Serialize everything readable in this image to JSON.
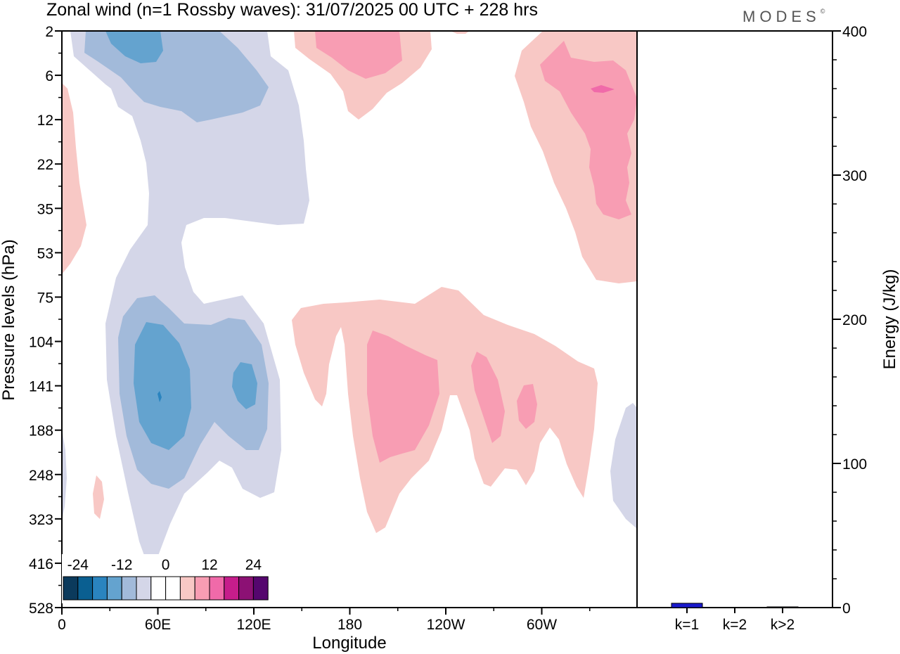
{
  "chart_data": {
    "type": "heatmap",
    "title": "Zonal wind (n=1 Rossby waves):  31/07/2025  00 UTC  + 228 hrs",
    "brand": "MODES",
    "brand_mark": "©",
    "xlabel": "Longitude",
    "ylabel": "Pressure levels (hPa)",
    "x_ticks": [
      "0",
      "60E",
      "120E",
      "180",
      "120W",
      "60W"
    ],
    "y_ticks": [
      "2",
      "6",
      "12",
      "22",
      "35",
      "53",
      "75",
      "104",
      "141",
      "188",
      "248",
      "323",
      "416",
      "528"
    ],
    "colorbar": {
      "tick_labels": [
        "-24",
        "-12",
        "0",
        "12",
        "24"
      ],
      "colors": [
        "#0b3a5c",
        "#0a5f91",
        "#2a84bf",
        "#64a3cf",
        "#a2bada",
        "#d4d6e8",
        "#ffffff",
        "#ffffff",
        "#f8c8c5",
        "#f89db3",
        "#f06aa9",
        "#c61d8b",
        "#8c1174",
        "#55066e"
      ]
    },
    "contour_colors": {
      "neg_weak": "#d4d6e8",
      "neg_mid": "#a2bada",
      "neg_strong": "#64a3cf",
      "neg_max": "#2a84bf",
      "pos_weak": "#f8c8c5",
      "pos_mid": "#f89db3",
      "pos_strong": "#f06aa9"
    },
    "energy_panel": {
      "ylabel": "Energy (J/kg)",
      "ylim": [
        0,
        400
      ],
      "y_ticks": [
        "0",
        "100",
        "200",
        "300",
        "400"
      ],
      "categories": [
        "k=1",
        "k=2",
        "k>2"
      ],
      "values": [
        3,
        0,
        0.5
      ],
      "bar_color": "#1a1acc"
    }
  }
}
